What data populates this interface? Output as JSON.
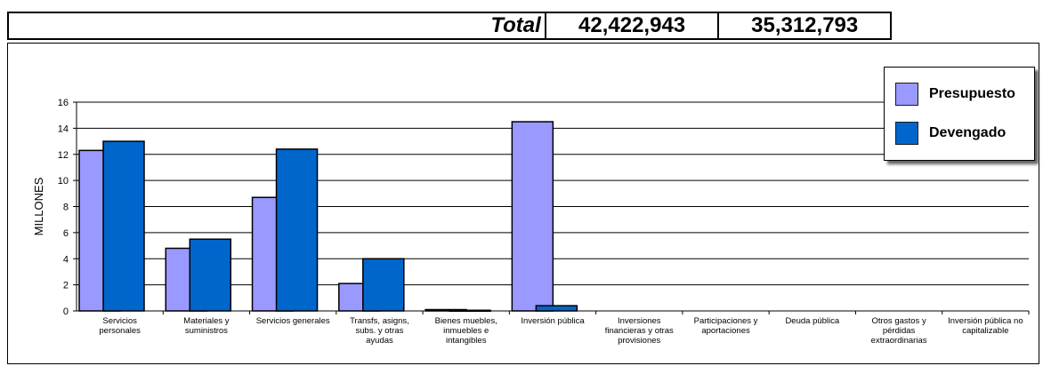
{
  "totals": {
    "label": "Total",
    "presupuesto": "42,422,943",
    "devengado": "35,312,793"
  },
  "chart_data": {
    "type": "bar",
    "ylabel": "MILLONES",
    "ylim": [
      0,
      16
    ],
    "yticks": [
      0,
      2,
      4,
      6,
      8,
      10,
      12,
      14,
      16
    ],
    "grid": true,
    "legend_position": "top-right",
    "categories": [
      [
        "Servicios",
        "personales"
      ],
      [
        "Materiales y",
        "suministros"
      ],
      [
        "Servicios generales"
      ],
      [
        "Transfs, asigns,",
        "subs. y otras",
        "ayudas"
      ],
      [
        "Bienes muebles,",
        "inmuebles e",
        "intangibles"
      ],
      [
        "Inversión pública"
      ],
      [
        "Inversiones",
        "financieras y otras",
        "provisiones"
      ],
      [
        "Participaciones y",
        "aportaciones"
      ],
      [
        "Deuda pública"
      ],
      [
        "Otros gastos y",
        "pérdidas",
        "extraordinarias"
      ],
      [
        "Inversión pública no",
        "capitalizable"
      ]
    ],
    "series": [
      {
        "name": "Presupuesto",
        "color": "#9999ff",
        "values": [
          12.3,
          4.8,
          8.7,
          2.1,
          0.1,
          14.5,
          0,
          0,
          0,
          0,
          0
        ]
      },
      {
        "name": "Devengado",
        "color": "#0066cc",
        "values": [
          13.0,
          5.5,
          12.4,
          4.0,
          0.05,
          0.4,
          0,
          0,
          0,
          0,
          0
        ]
      }
    ]
  }
}
